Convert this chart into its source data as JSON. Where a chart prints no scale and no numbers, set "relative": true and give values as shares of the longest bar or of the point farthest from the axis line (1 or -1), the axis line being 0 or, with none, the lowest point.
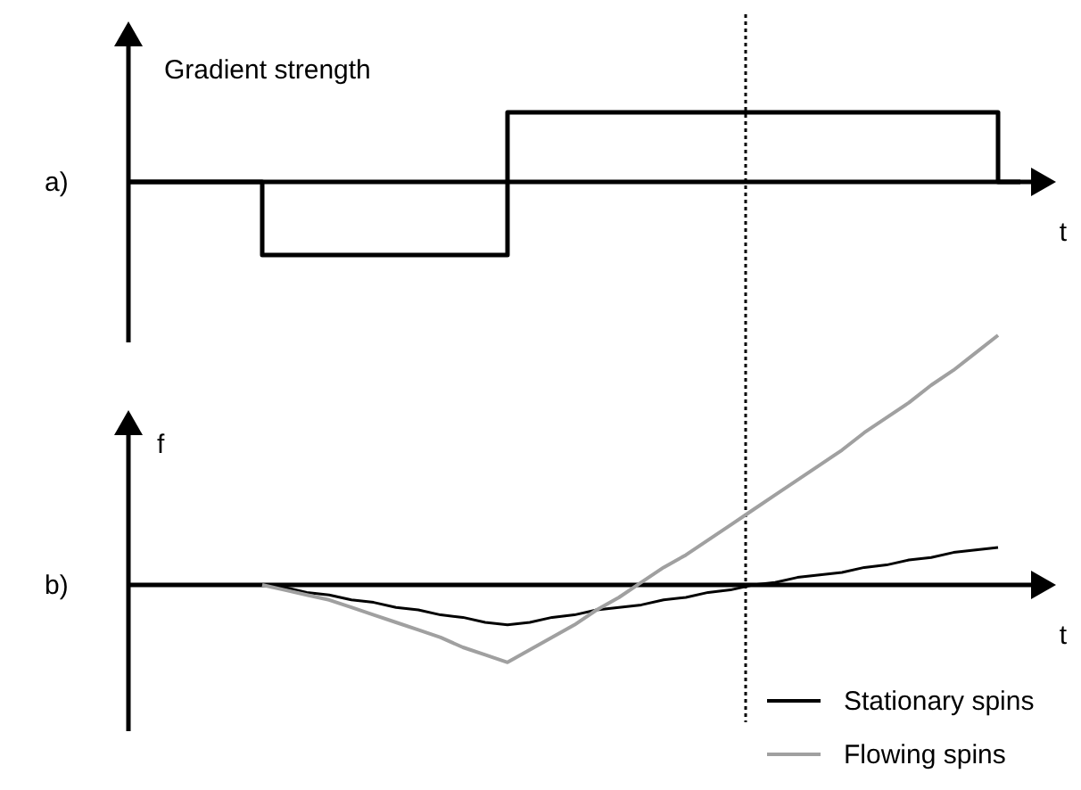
{
  "chart_data": [
    {
      "type": "step",
      "title": "a)",
      "ylabel": "Gradient strength",
      "xlabel": "t",
      "relative": true,
      "categories": [
        null,
        null,
        null,
        null,
        null,
        null,
        null,
        null,
        null,
        null,
        null,
        null,
        null,
        null,
        null,
        null,
        null,
        null,
        null,
        null,
        null,
        null,
        null,
        null,
        null,
        null,
        null,
        null,
        null,
        null,
        null,
        null,
        null,
        null,
        null,
        null,
        null,
        null,
        null,
        null,
        null
      ],
      "series": [
        {
          "color": "#000000",
          "values": [
            0,
            0,
            0,
            0,
            0,
            0,
            -1,
            -1,
            -1,
            -1,
            -1,
            -1,
            -1,
            -1,
            -1,
            -1,
            -1,
            0.95,
            0.95,
            0.95,
            0.95,
            0.95,
            0.95,
            0.95,
            0.95,
            0.95,
            0.95,
            0.95,
            0.95,
            0.95,
            0.95,
            0.95,
            0.95,
            0.95,
            0.95,
            0.95,
            0.95,
            0.95,
            0.95,
            0,
            0
          ]
        }
      ],
      "legend": false
    },
    {
      "type": "line",
      "title": "b)",
      "ylabel": "f",
      "xlabel": "t",
      "relative": true,
      "categories": [
        null,
        null,
        null,
        null,
        null,
        null,
        null,
        null,
        null,
        null,
        null,
        null,
        null,
        null,
        null,
        null,
        null,
        null,
        null,
        null,
        null,
        null,
        null,
        null,
        null,
        null,
        null,
        null,
        null,
        null,
        null,
        null,
        null,
        null,
        null,
        null,
        null,
        null,
        null,
        null,
        null
      ],
      "series": [
        {
          "name": "Stationary spins",
          "color": "#000000",
          "values": [
            null,
            null,
            null,
            null,
            null,
            null,
            0,
            -0.01,
            -0.03,
            -0.04,
            -0.06,
            -0.07,
            -0.09,
            -0.1,
            -0.12,
            -0.13,
            -0.15,
            -0.16,
            -0.15,
            -0.13,
            -0.12,
            -0.1,
            -0.09,
            -0.08,
            -0.06,
            -0.05,
            -0.03,
            -0.02,
            0,
            0.01,
            0.03,
            0.04,
            0.05,
            0.07,
            0.08,
            0.1,
            0.11,
            0.13,
            0.14,
            0.15,
            null
          ]
        },
        {
          "name": "Flowing spins",
          "color": "#a0a0a0",
          "values": [
            null,
            null,
            null,
            null,
            null,
            null,
            0,
            -0.02,
            -0.04,
            -0.06,
            -0.09,
            -0.12,
            -0.15,
            -0.18,
            -0.21,
            -0.25,
            -0.28,
            -0.31,
            -0.26,
            -0.21,
            -0.16,
            -0.1,
            -0.05,
            0.01,
            0.07,
            0.12,
            0.18,
            0.24,
            0.3,
            0.36,
            0.42,
            0.48,
            0.54,
            0.61,
            0.67,
            0.73,
            0.8,
            0.86,
            0.93,
            1,
            null
          ]
        }
      ],
      "legend": "bottom right"
    }
  ]
}
